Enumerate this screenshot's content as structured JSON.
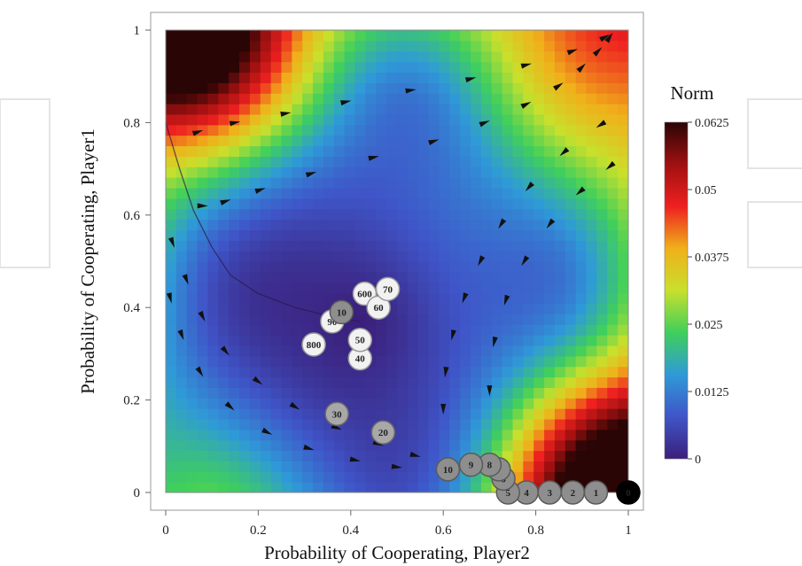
{
  "chart_data": {
    "type": "heatmap",
    "title": "",
    "xlabel": "Probability of Cooperating, Player2",
    "ylabel": "Probability of Cooperating, Player1",
    "xlim": [
      0,
      1
    ],
    "ylim": [
      0,
      1
    ],
    "x_ticks": [
      "0",
      "0.2",
      "0.4",
      "0.6",
      "0.8",
      "1"
    ],
    "y_ticks": [
      "0",
      "0.2",
      "0.4",
      "0.6",
      "0.8",
      "1"
    ],
    "colorbar": {
      "title": "Norm",
      "min": 0,
      "max": 0.0625,
      "ticks": [
        "0",
        "0.0125",
        "0.025",
        "0.0375",
        "0.05",
        "0.0625"
      ],
      "colors": [
        "#3b1f7a",
        "#3f55c8",
        "#2f9ad8",
        "#3fcf5c",
        "#c8e02c",
        "#f0b01a",
        "#ee2020",
        "#a01010",
        "#2a0505"
      ]
    },
    "field_peaks": [
      {
        "x": 0.0,
        "y": 1.0,
        "value": 0.0625
      },
      {
        "x": 1.0,
        "y": 0.0,
        "value": 0.0625
      }
    ],
    "field_minimum": {
      "x": 0.42,
      "y": 0.37,
      "value": 0.0
    },
    "trajectory_points": [
      {
        "label": "0",
        "x": 1.0,
        "y": 0.0
      },
      {
        "label": "1",
        "x": 0.93,
        "y": 0.0
      },
      {
        "label": "2",
        "x": 0.88,
        "y": 0.0
      },
      {
        "label": "3",
        "x": 0.83,
        "y": 0.0
      },
      {
        "label": "4",
        "x": 0.78,
        "y": 0.0
      },
      {
        "label": "5",
        "x": 0.74,
        "y": 0.0
      },
      {
        "label": "6",
        "x": 0.73,
        "y": 0.03
      },
      {
        "label": "7",
        "x": 0.72,
        "y": 0.05
      },
      {
        "label": "8",
        "x": 0.7,
        "y": 0.06
      },
      {
        "label": "9",
        "x": 0.66,
        "y": 0.06
      },
      {
        "label": "10",
        "x": 0.61,
        "y": 0.05
      },
      {
        "label": "20",
        "x": 0.47,
        "y": 0.13
      },
      {
        "label": "30",
        "x": 0.37,
        "y": 0.17
      },
      {
        "label": "40",
        "x": 0.42,
        "y": 0.29
      },
      {
        "label": "50",
        "x": 0.42,
        "y": 0.33
      },
      {
        "label": "800",
        "x": 0.32,
        "y": 0.32
      },
      {
        "label": "90",
        "x": 0.36,
        "y": 0.37
      },
      {
        "label": "10",
        "x": 0.38,
        "y": 0.39
      },
      {
        "label": "600",
        "x": 0.43,
        "y": 0.43
      },
      {
        "label": "60",
        "x": 0.46,
        "y": 0.4
      },
      {
        "label": "70",
        "x": 0.48,
        "y": 0.44
      }
    ],
    "fixed_point": {
      "x": 0.42,
      "y": 0.37
    },
    "arrow_rings": [
      {
        "x": [
          0.04,
          0.1,
          0.2,
          0.32,
          0.46,
          0.6,
          0.72,
          0.84,
          0.92,
          0.98
        ],
        "y": [
          0.77,
          0.79,
          0.81,
          0.83,
          0.86,
          0.88,
          0.91,
          0.94,
          0.97,
          1.0
        ]
      },
      {
        "x": [
          0.06,
          0.1,
          0.16,
          0.25,
          0.38,
          0.52,
          0.64,
          0.74,
          0.82,
          0.88,
          0.92,
          0.95,
          0.97
        ],
        "y": [
          0.62,
          0.62,
          0.64,
          0.67,
          0.71,
          0.74,
          0.78,
          0.82,
          0.86,
          0.9,
          0.94,
          0.97,
          1.0
        ]
      },
      {
        "x": [
          0.98,
          0.9,
          0.82,
          0.75,
          0.7,
          0.66,
          0.63,
          0.61,
          0.6,
          0.6
        ],
        "y": [
          0.82,
          0.77,
          0.7,
          0.62,
          0.54,
          0.46,
          0.38,
          0.3,
          0.22,
          0.14
        ]
      },
      {
        "x": [
          0.99,
          0.93,
          0.86,
          0.8,
          0.75,
          0.72,
          0.7,
          0.7
        ],
        "y": [
          0.73,
          0.68,
          0.62,
          0.54,
          0.46,
          0.37,
          0.28,
          0.16
        ]
      },
      {
        "x": [
          0.0,
          0.03,
          0.06,
          0.1,
          0.16,
          0.24,
          0.32,
          0.42,
          0.5,
          0.58
        ],
        "y": [
          0.58,
          0.5,
          0.42,
          0.34,
          0.27,
          0.21,
          0.16,
          0.12,
          0.09,
          0.07
        ]
      },
      {
        "x": [
          0.0,
          0.02,
          0.05,
          0.1,
          0.18,
          0.26,
          0.36,
          0.46,
          0.54
        ],
        "y": [
          0.46,
          0.38,
          0.3,
          0.22,
          0.15,
          0.11,
          0.08,
          0.06,
          0.05
        ]
      }
    ],
    "separatrix": {
      "x": [
        0.0,
        0.03,
        0.06,
        0.1,
        0.14,
        0.2,
        0.28,
        0.36,
        0.42
      ],
      "y": [
        0.8,
        0.7,
        0.61,
        0.53,
        0.47,
        0.43,
        0.4,
        0.38,
        0.37
      ]
    },
    "grid": false
  }
}
